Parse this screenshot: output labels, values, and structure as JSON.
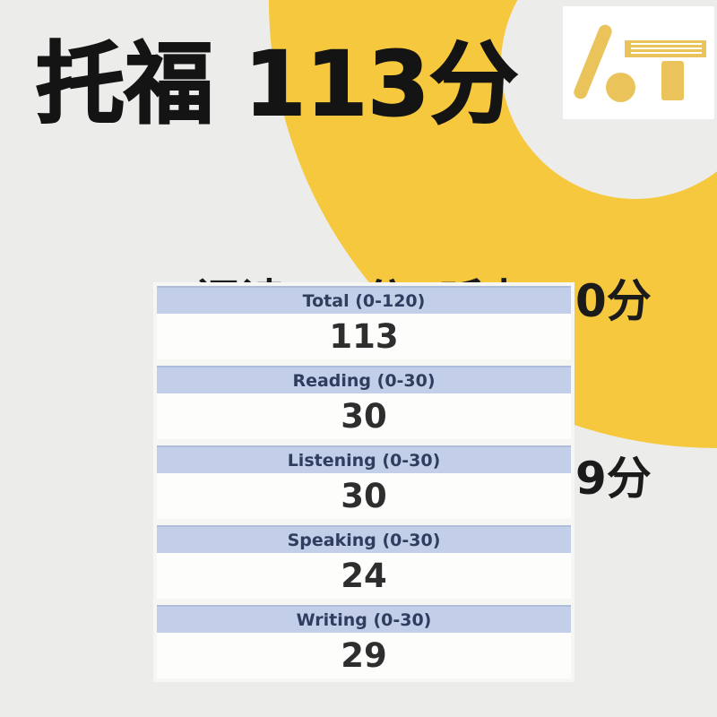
{
  "title": "托福 113分",
  "tagline": {
    "line1": "阅读 30分  听力 30分",
    "line2": "口语 24分  写作 29分"
  },
  "logo": {
    "name": "AT brush-and-book logomark"
  },
  "score_table": {
    "rows": [
      {
        "label": "Total (0-120)",
        "value": "113"
      },
      {
        "label": "Reading (0-30)",
        "value": "30"
      },
      {
        "label": "Listening (0-30)",
        "value": "30"
      },
      {
        "label": "Speaking (0-30)",
        "value": "24"
      },
      {
        "label": "Writing (0-30)",
        "value": "29"
      }
    ]
  },
  "colors": {
    "background_gray": "#ECECEA",
    "accent_yellow": "#F6C83E",
    "logo_yellow": "#EAC45B",
    "header_band": "#C3CEE9",
    "header_band_border": "#AFBDDC",
    "header_text": "#2F3E5E",
    "value_text": "#2E2E2E",
    "headline_text": "#141414"
  }
}
